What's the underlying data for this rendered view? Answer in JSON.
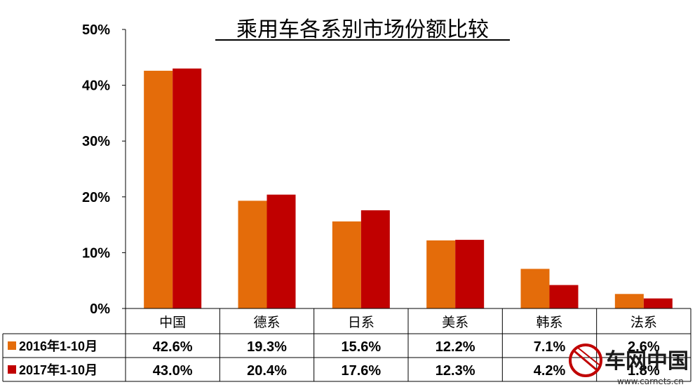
{
  "chart_data": {
    "type": "bar",
    "title": "乘用车各系别市场份额比较",
    "categories": [
      "中国",
      "德系",
      "日系",
      "美系",
      "韩系",
      "法系"
    ],
    "series": [
      {
        "name": "2016年1-10月",
        "values": [
          42.6,
          19.3,
          15.6,
          12.2,
          7.1,
          2.6
        ],
        "labels": [
          "42.6%",
          "19.3%",
          "15.6%",
          "12.2%",
          "7.1%",
          "2.6%"
        ],
        "color": "#E46C0A"
      },
      {
        "name": "2017年1-10月",
        "values": [
          43.0,
          20.4,
          17.6,
          12.3,
          4.2,
          1.8
        ],
        "labels": [
          "43.0%",
          "20.4%",
          "17.6%",
          "12.3%",
          "4.2%",
          "1.8%"
        ],
        "color": "#C00000"
      }
    ],
    "yticks": [
      "0%",
      "10%",
      "20%",
      "30%",
      "40%",
      "50%"
    ],
    "ylim": [
      0,
      50
    ],
    "grid": false,
    "legend": "data-table"
  },
  "watermark": {
    "text": "车网中国",
    "url": "www.carnets.cn"
  }
}
